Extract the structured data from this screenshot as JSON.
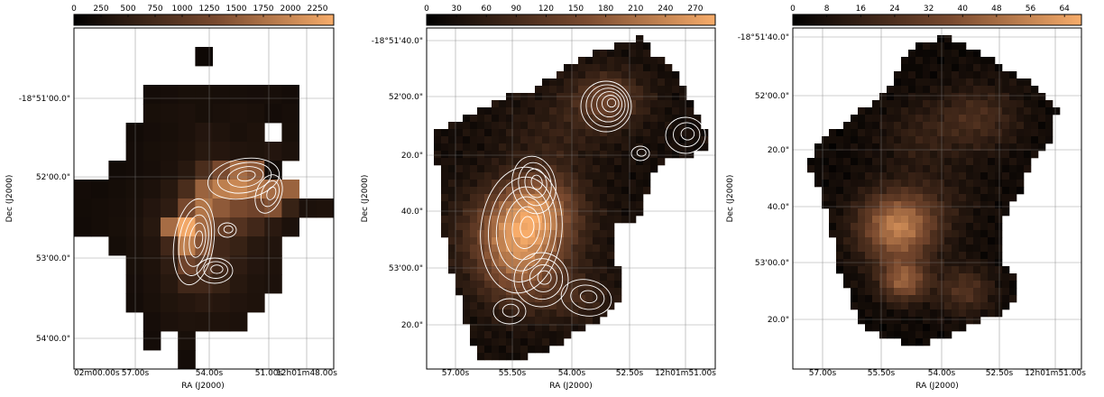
{
  "colors": {
    "cmap_low": "#000000",
    "cmap_mid": "#7a4a2f",
    "cmap_high": "#f7ac6a",
    "contour": "#ffffff",
    "grid": "#808080"
  },
  "chart_data": [
    {
      "type": "heatmap",
      "title": "",
      "xlabel": "RA (J2000)",
      "ylabel": "Dec (J2000)",
      "colorbar_ticks": [
        "0",
        "250",
        "500",
        "750",
        "1000",
        "1250",
        "1500",
        "1750",
        "2000",
        "2250"
      ],
      "colorbar_range": [
        0,
        2400
      ],
      "x_ticks": [
        "02m00.00s",
        "57.00s",
        "54.00s",
        "51.00s",
        "12h01m48.00s"
      ],
      "y_ticks": [
        "-18°51'00.0\"",
        "52'00.0\"",
        "53'00.0\"",
        "54'00.0\""
      ],
      "contours": true,
      "grid": true,
      "pixel_size": "coarse",
      "values": [
        [
          0,
          0,
          0,
          0,
          0,
          0,
          0,
          0,
          0,
          0,
          0,
          0,
          0,
          0,
          0
        ],
        [
          0,
          0,
          0,
          0,
          0,
          0,
          0,
          150,
          0,
          0,
          0,
          0,
          0,
          0,
          0
        ],
        [
          0,
          0,
          0,
          0,
          0,
          0,
          0,
          0,
          0,
          0,
          0,
          0,
          0,
          0,
          0
        ],
        [
          0,
          0,
          0,
          0,
          220,
          240,
          260,
          260,
          250,
          250,
          240,
          250,
          220,
          0,
          0
        ],
        [
          0,
          0,
          0,
          0,
          260,
          280,
          300,
          260,
          280,
          300,
          280,
          220,
          250,
          0,
          0
        ],
        [
          0,
          0,
          0,
          200,
          240,
          260,
          300,
          380,
          330,
          280,
          320,
          0,
          260,
          0,
          0
        ],
        [
          0,
          0,
          0,
          220,
          260,
          280,
          320,
          420,
          400,
          360,
          330,
          380,
          300,
          0,
          0
        ],
        [
          0,
          0,
          200,
          220,
          250,
          300,
          420,
          800,
          1300,
          1700,
          1500,
          200,
          0,
          0,
          0
        ],
        [
          220,
          200,
          230,
          260,
          300,
          420,
          800,
          1600,
          1900,
          2000,
          1800,
          1700,
          1600,
          0,
          0
        ],
        [
          210,
          230,
          250,
          280,
          380,
          500,
          1300,
          1800,
          1500,
          1300,
          1200,
          1400,
          600,
          300,
          320
        ],
        [
          200,
          230,
          260,
          300,
          420,
          1700,
          2350,
          1700,
          1100,
          900,
          700,
          450,
          300,
          0,
          0
        ],
        [
          0,
          0,
          230,
          280,
          360,
          700,
          1900,
          1400,
          700,
          600,
          420,
          360,
          0,
          0,
          0
        ],
        [
          0,
          0,
          0,
          260,
          320,
          500,
          1200,
          1000,
          700,
          500,
          380,
          320,
          0,
          0,
          0
        ],
        [
          0,
          0,
          0,
          240,
          300,
          420,
          700,
          700,
          600,
          420,
          340,
          300,
          0,
          0,
          0
        ],
        [
          0,
          0,
          0,
          220,
          280,
          350,
          400,
          450,
          400,
          360,
          320,
          0,
          0,
          0,
          0
        ],
        [
          0,
          0,
          0,
          0,
          240,
          300,
          330,
          320,
          320,
          300,
          0,
          0,
          0,
          0,
          0
        ],
        [
          0,
          0,
          0,
          0,
          220,
          0,
          260,
          0,
          0,
          0,
          0,
          0,
          0,
          0,
          0
        ],
        [
          0,
          0,
          0,
          0,
          0,
          0,
          220,
          0,
          0,
          0,
          0,
          0,
          0,
          0,
          0
        ]
      ]
    },
    {
      "type": "heatmap",
      "title": "",
      "xlabel": "RA (J2000)",
      "ylabel": "Dec (J2000)",
      "colorbar_ticks": [
        "0",
        "30",
        "60",
        "90",
        "120",
        "150",
        "180",
        "210",
        "240",
        "270"
      ],
      "colorbar_range": [
        0,
        290
      ],
      "x_ticks": [
        "57.00s",
        "55.50s",
        "54.00s",
        "52.50s",
        "12h01m51.00s"
      ],
      "y_ticks": [
        "-18°51'40.0\"",
        "52'00.0\"",
        "20.0\"",
        "40.0\"",
        "53'00.0\"",
        "20.0\""
      ],
      "contours": true,
      "grid": true,
      "pixel_size": "fine"
    },
    {
      "type": "heatmap",
      "title": "",
      "xlabel": "RA (J2000)",
      "ylabel": "Dec (J2000)",
      "colorbar_ticks": [
        "0",
        "8",
        "16",
        "24",
        "32",
        "40",
        "48",
        "56",
        "64"
      ],
      "colorbar_range": [
        0,
        68
      ],
      "x_ticks": [
        "57.00s",
        "55.50s",
        "54.00s",
        "52.50s",
        "12h01m51.00s"
      ],
      "y_ticks": [
        "-18°51'40.0\"",
        "52'00.0\"",
        "20.0\"",
        "40.0\"",
        "53'00.0\"",
        "20.0\""
      ],
      "contours": false,
      "grid": true,
      "pixel_size": "fine"
    }
  ]
}
